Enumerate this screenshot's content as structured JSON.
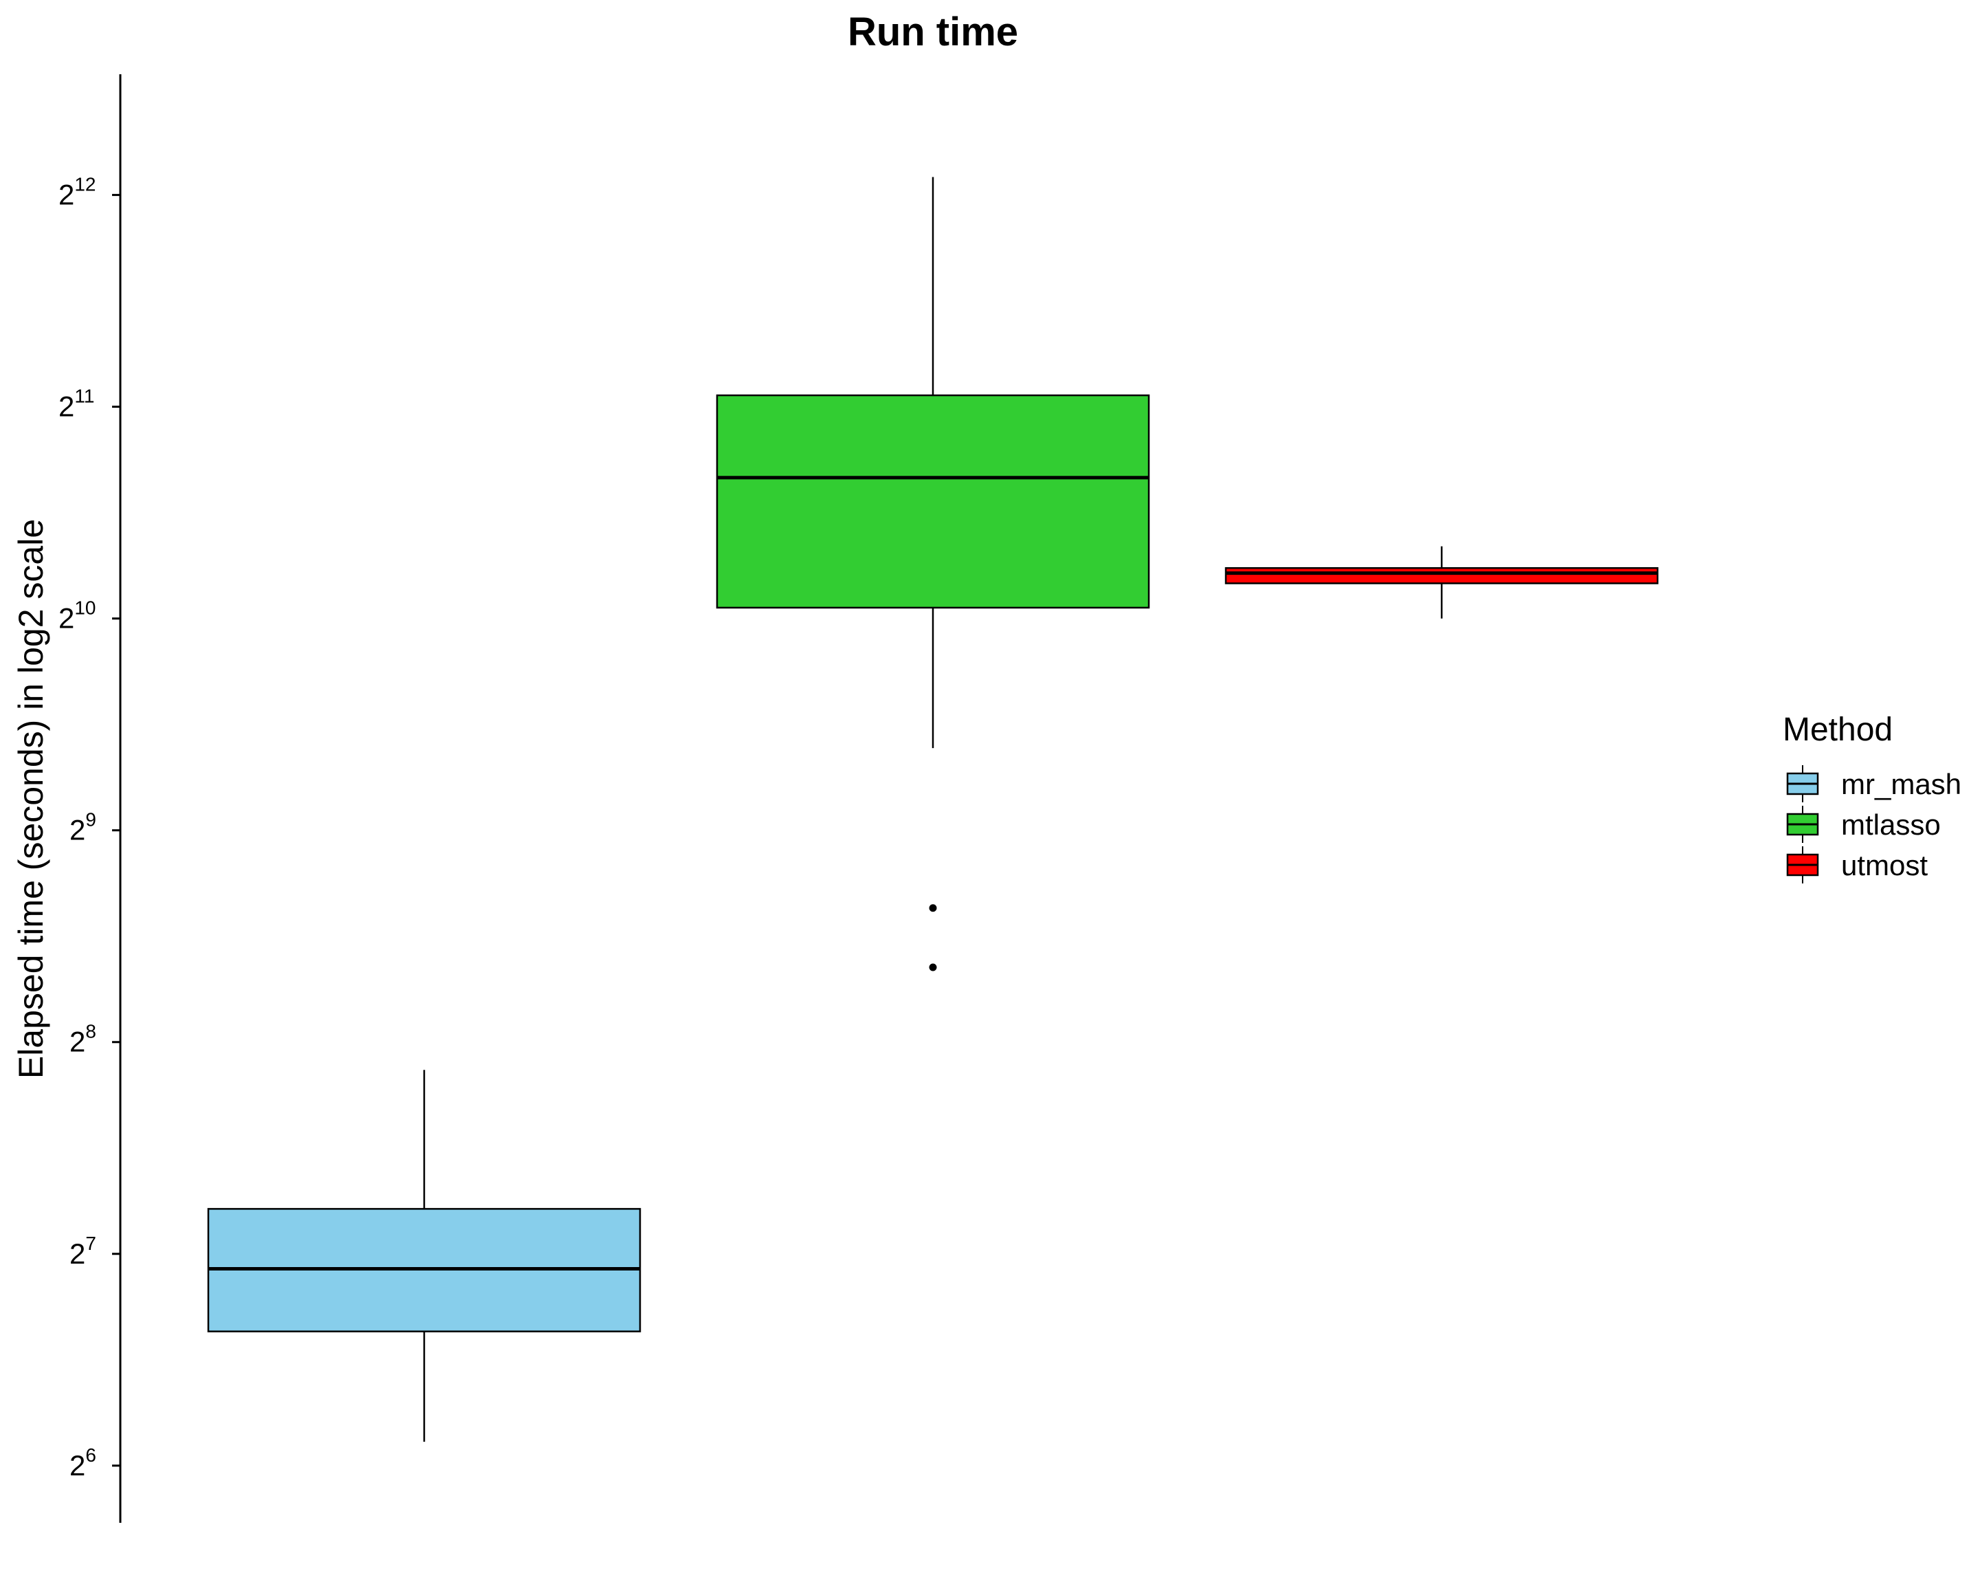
{
  "chart_data": {
    "type": "boxplot",
    "title": "Run time",
    "xlabel": "",
    "ylabel": "Elapsed time (seconds) in log2 scale",
    "y_scale": "log2",
    "ylim_log2": [
      5.73,
      12.57
    ],
    "y_ticks": [
      {
        "base": "2",
        "exp": "6",
        "log2": 6
      },
      {
        "base": "2",
        "exp": "7",
        "log2": 7
      },
      {
        "base": "2",
        "exp": "8",
        "log2": 8
      },
      {
        "base": "2",
        "exp": "9",
        "log2": 9
      },
      {
        "base": "2",
        "exp": "10",
        "log2": 10
      },
      {
        "base": "2",
        "exp": "11",
        "log2": 11
      },
      {
        "base": "2",
        "exp": "12",
        "log2": 12
      }
    ],
    "categories": [
      "mr_mash",
      "mtlasso",
      "utmost"
    ],
    "series": [
      {
        "name": "mr_mash",
        "color": "#87CEEB",
        "whisker_low": 69.2,
        "q1": 99.3,
        "median": 121.9,
        "q3": 148.3,
        "whisker_high": 233.7,
        "outliers": []
      },
      {
        "name": "mtlasso",
        "color": "#32CD32",
        "whisker_low": 670,
        "q1": 1061,
        "median": 1624,
        "q3": 2126,
        "whisker_high": 4344,
        "outliers": [
          397,
          327
        ]
      },
      {
        "name": "utmost",
        "color": "#FF0000",
        "whisker_low": 1024,
        "q1": 1149,
        "median": 1188,
        "q3": 1208,
        "whisker_high": 1297,
        "outliers": []
      }
    ],
    "legend": {
      "title": "Method",
      "position": "right",
      "entries": [
        "mr_mash",
        "mtlasso",
        "utmost"
      ]
    },
    "grid": false
  }
}
